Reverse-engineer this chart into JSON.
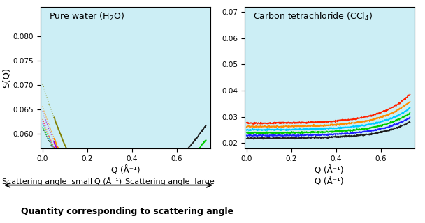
{
  "title_left": "Pure water (H₂O)",
  "title_right": "Carbon tetrachloride (CCl₄)",
  "ylabel": "S(Q)",
  "xlabel_left": "Q (Å⁻¹)",
  "xlabel_right": "Q (Å⁻¹)",
  "bg_color": "#cceef5",
  "xlim_left": [
    -0.01,
    0.75
  ],
  "xlim_right": [
    -0.01,
    0.75
  ],
  "ylim_left": [
    0.057,
    0.086
  ],
  "ylim_right": [
    0.018,
    0.072
  ],
  "yticks_left": [
    0.06,
    0.065,
    0.07,
    0.075,
    0.08
  ],
  "yticks_right": [
    0.02,
    0.03,
    0.04,
    0.05,
    0.06,
    0.07
  ],
  "xticks": [
    0,
    0.2,
    0.4,
    0.6
  ],
  "arrow_text_left": "Scattering angle  small",
  "arrow_text_right": "Scattering angle  large",
  "arrow_text_q": "Q (Å⁻¹)",
  "bottom_label": "Quantity corresponding to scattering angle",
  "colors_left": [
    "#808000",
    "#ff8c00",
    "#9400d3",
    "#ff2200",
    "#ff00ff",
    "#cccc00",
    "#00ccff",
    "#00cc00",
    "#202020"
  ],
  "colors_right": [
    "#ff2200",
    "#ff8c00",
    "#00ccff",
    "#00cc00",
    "#2222ff",
    "#202020"
  ],
  "left_curve_params": [
    {
      "y0": 0.07,
      "ymin": 0.0685,
      "qmin": 0.5,
      "curv": 0.055
    },
    {
      "y0": 0.0655,
      "ymin": 0.063,
      "qmin": 0.46,
      "curv": 0.058
    },
    {
      "y0": 0.0645,
      "ymin": 0.0615,
      "qmin": 0.43,
      "curv": 0.06
    },
    {
      "y0": 0.063,
      "ymin": 0.06,
      "qmin": 0.4,
      "curv": 0.062
    },
    {
      "y0": 0.0625,
      "ymin": 0.059,
      "qmin": 0.37,
      "curv": 0.064
    },
    {
      "y0": 0.0623,
      "ymin": 0.058,
      "qmin": 0.34,
      "curv": 0.066
    },
    {
      "y0": 0.062,
      "ymin": 0.0575,
      "qmin": 0.32,
      "curv": 0.068
    },
    {
      "y0": 0.0615,
      "ymin": 0.057,
      "qmin": 0.3,
      "curv": 0.07
    },
    {
      "y0": 0.0612,
      "ymin": 0.0568,
      "qmin": 0.28,
      "curv": 0.072
    }
  ],
  "right_curve_params": [
    {
      "y0": 0.0275,
      "scale": 0.0008,
      "rate": 7.5,
      "qshift": 0.38
    },
    {
      "y0": 0.0262,
      "scale": 0.0007,
      "rate": 7.5,
      "qshift": 0.38
    },
    {
      "y0": 0.025,
      "scale": 0.0006,
      "rate": 7.5,
      "qshift": 0.38
    },
    {
      "y0": 0.0238,
      "scale": 0.00055,
      "rate": 7.5,
      "qshift": 0.38
    },
    {
      "y0": 0.0228,
      "scale": 0.0005,
      "rate": 7.5,
      "qshift": 0.38
    },
    {
      "y0": 0.0218,
      "scale": 0.00045,
      "rate": 7.5,
      "qshift": 0.38
    }
  ]
}
